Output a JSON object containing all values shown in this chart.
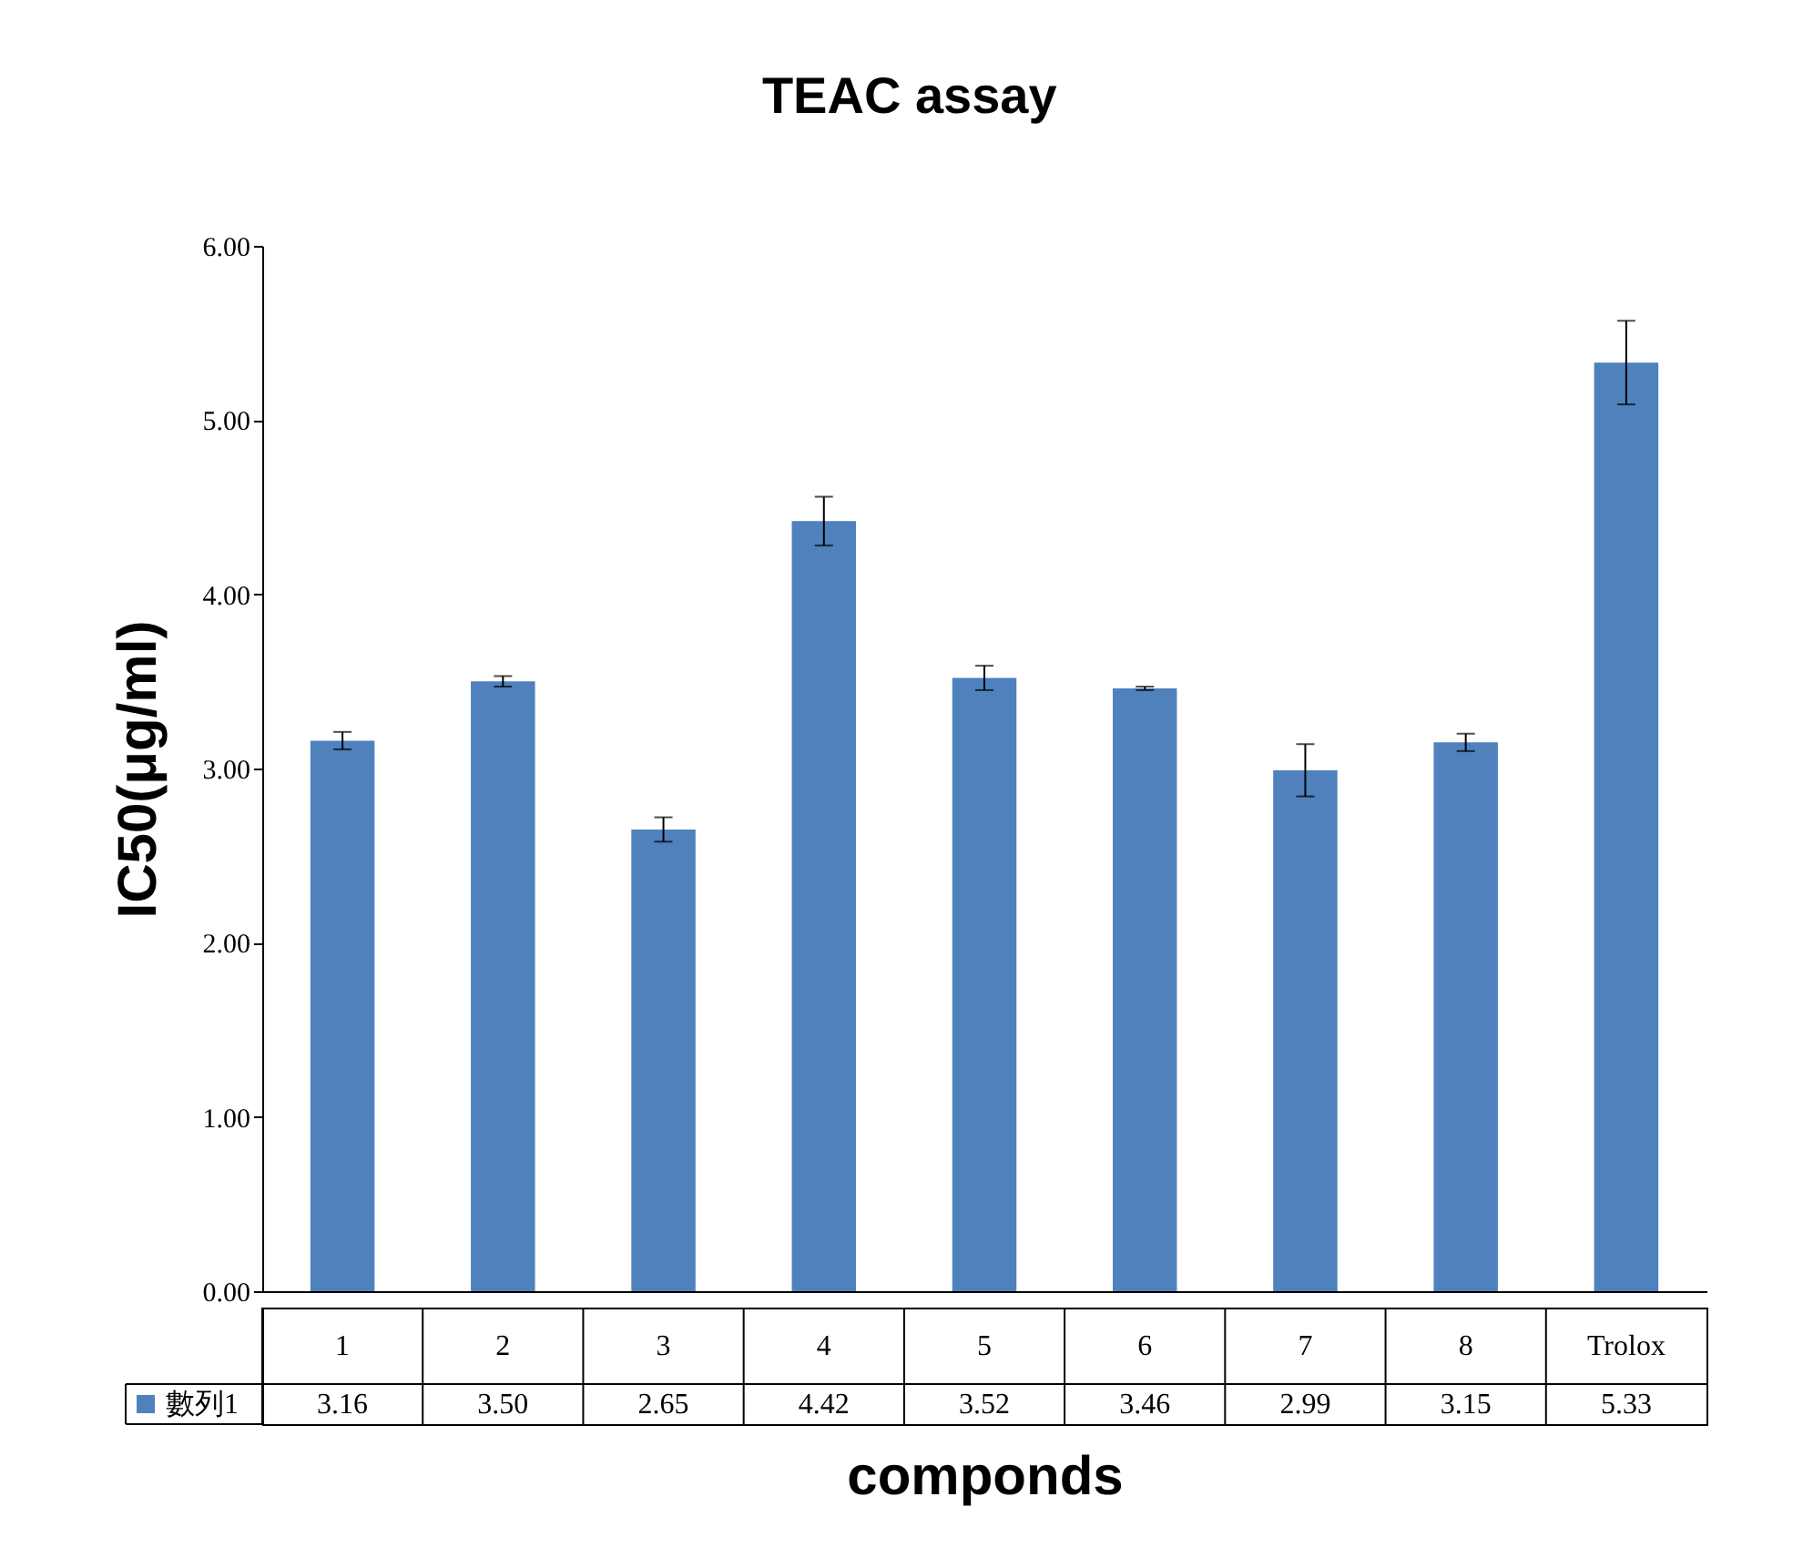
{
  "chart_data": {
    "type": "bar",
    "title": "TEAC assay",
    "xlabel": "componds",
    "ylabel": "IC50(μg/ml)",
    "categories": [
      "1",
      "2",
      "3",
      "4",
      "5",
      "6",
      "7",
      "8",
      "Trolox"
    ],
    "series": [
      {
        "name": "數列1",
        "color": "#4f81bd",
        "values": [
          3.16,
          3.5,
          2.65,
          4.42,
          3.52,
          3.46,
          2.99,
          3.15,
          5.33
        ],
        "errors": [
          0.05,
          0.03,
          0.07,
          0.14,
          0.07,
          0.01,
          0.15,
          0.05,
          0.24
        ],
        "value_labels": [
          "3.16",
          "3.50",
          "2.65",
          "4.42",
          "3.52",
          "3.46",
          "2.99",
          "3.15",
          "5.33"
        ]
      }
    ],
    "ylim": [
      0,
      6
    ],
    "yticks": [
      {
        "value": 0,
        "label": "0.00"
      },
      {
        "value": 1,
        "label": "1.00"
      },
      {
        "value": 2,
        "label": "2.00"
      },
      {
        "value": 3,
        "label": "3.00"
      },
      {
        "value": 4,
        "label": "4.00"
      },
      {
        "value": 5,
        "label": "5.00"
      },
      {
        "value": 6,
        "label": "6.00"
      }
    ],
    "legend": "bottom left",
    "grid": false
  }
}
